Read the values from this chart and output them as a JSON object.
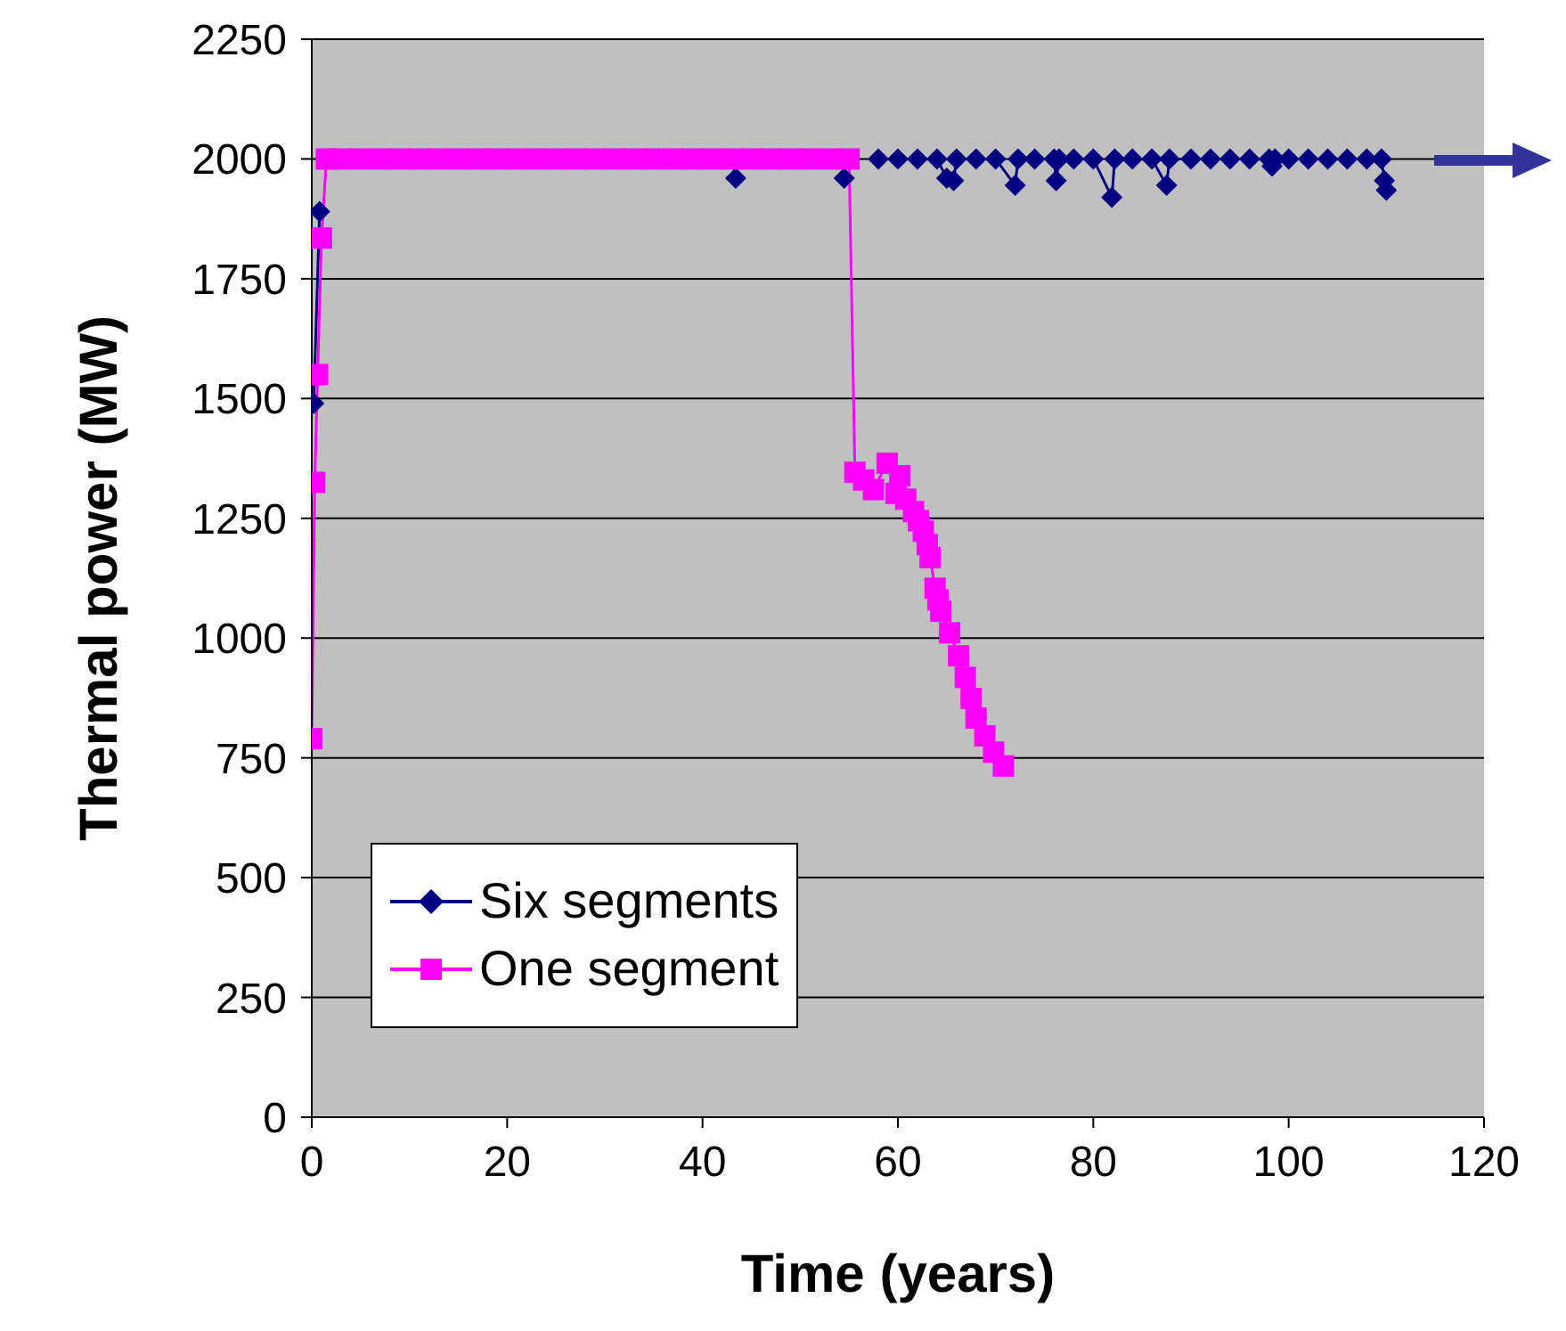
{
  "chart_data": {
    "type": "line",
    "xlabel": "Time (years)",
    "ylabel": "Thermal power (MW)",
    "xlim": [
      0,
      120
    ],
    "xticks": [
      0,
      20,
      40,
      60,
      80,
      100,
      120
    ],
    "ylim": [
      0,
      2250
    ],
    "yticks": [
      0,
      250,
      500,
      750,
      1000,
      1250,
      1500,
      1750,
      2000,
      2250
    ],
    "grid": "y",
    "legend": "bottom left",
    "series": [
      {
        "name": "Six segments",
        "color": "#000080",
        "marker": "diamond",
        "x": [
          0.2,
          0.8,
          1.2,
          2,
          4,
          6,
          8,
          10,
          12,
          14,
          16,
          18,
          20,
          22,
          24,
          26,
          28,
          30,
          32,
          34,
          36,
          38,
          40,
          42,
          43.4,
          44,
          46,
          48,
          50,
          52,
          54,
          54.5,
          55,
          56,
          58,
          60,
          62,
          64,
          65,
          65.7,
          66,
          68,
          70,
          72,
          72.3,
          74,
          76,
          76.2,
          76.5,
          78,
          80,
          81.9,
          82.2,
          84,
          86,
          87.5,
          87.8,
          90,
          92,
          94,
          96,
          98,
          98.3,
          98.6,
          100,
          102,
          104,
          106,
          108,
          109.5,
          109.8,
          110
        ],
        "values": [
          1490,
          1890,
          null,
          null,
          null,
          null,
          null,
          null,
          null,
          null,
          null,
          null,
          null,
          null,
          null,
          null,
          null,
          null,
          null,
          null,
          null,
          null,
          null,
          null,
          1960,
          null,
          null,
          null,
          null,
          null,
          null,
          1960,
          null,
          null,
          2000,
          2000,
          2000,
          2000,
          1960,
          1955,
          2000,
          2000,
          2000,
          1945,
          2000,
          2000,
          2000,
          1955,
          2000,
          2000,
          2000,
          1920,
          2000,
          2000,
          2000,
          1945,
          2000,
          2000,
          2000,
          2000,
          2000,
          2000,
          1985,
          2000,
          2000,
          2000,
          2000,
          2000,
          2000,
          2000,
          1955,
          1935
        ]
      },
      {
        "name": "One segment",
        "color": "#ff00ff",
        "marker": "square",
        "x": [
          0,
          0.3,
          0.6,
          1,
          1.5,
          3,
          5,
          7,
          9,
          11,
          13,
          15,
          17,
          19,
          21,
          23,
          25,
          27,
          29,
          31,
          33,
          35,
          37,
          39,
          41,
          43,
          45,
          47,
          49,
          51,
          53,
          55,
          55.6,
          56.5,
          57.5,
          58.9,
          60.2,
          59.8,
          60.8,
          61.6,
          62.1,
          62.6,
          63,
          63.3,
          63.8,
          64.1,
          64.4,
          65.3,
          66.2,
          66.9,
          67.5,
          68,
          68.9,
          69.8,
          70.8
        ],
        "values": [
          790,
          1325,
          1550,
          1835,
          2000,
          2000,
          2000,
          2000,
          2000,
          2000,
          2000,
          2000,
          2000,
          2000,
          2000,
          2000,
          2000,
          2000,
          2000,
          2000,
          2000,
          2000,
          2000,
          2000,
          2000,
          2000,
          2000,
          2000,
          2000,
          2000,
          2000,
          2000,
          1346,
          1330,
          1310,
          1365,
          1339,
          1302,
          1290,
          1264,
          1245,
          1223,
          1195,
          1168,
          1104,
          1080,
          1056,
          1011,
          963,
          918,
          874,
          833,
          796,
          762,
          733
        ]
      }
    ]
  }
}
